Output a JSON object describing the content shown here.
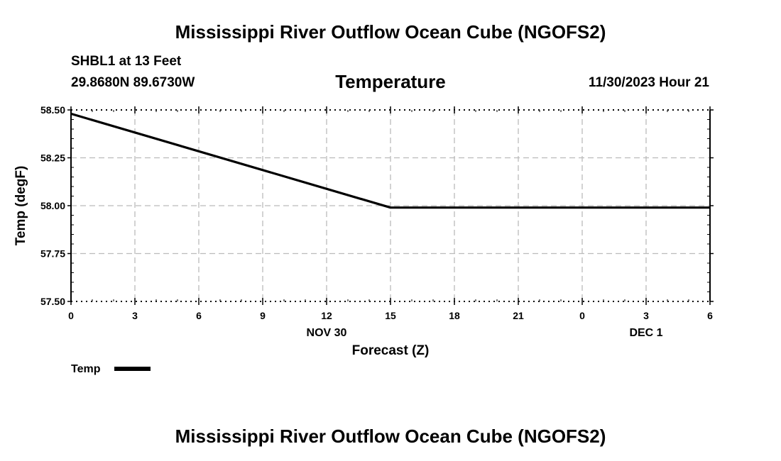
{
  "header": {
    "main_title": "Mississippi River Outflow Ocean Cube (NGOFS2)",
    "station": "SHBL1 at 13 Feet",
    "coords": "29.8680N  89.6730W",
    "variable": "Temperature",
    "datetime": "11/30/2023 Hour 21"
  },
  "chart_data": {
    "type": "line",
    "title": "Temperature",
    "xlabel": "Forecast (Z)",
    "ylabel": "Temp (degF)",
    "x_ticks": [
      "0",
      "3",
      "6",
      "9",
      "12",
      "15",
      "18",
      "21",
      "0",
      "3",
      "6"
    ],
    "x_range": [
      0,
      30
    ],
    "date_labels": [
      {
        "text": "NOV 30",
        "at": 12
      },
      {
        "text": "DEC 1",
        "at": 27
      }
    ],
    "y_ticks": [
      "58.50",
      "58.25",
      "58.00",
      "57.75",
      "57.50"
    ],
    "ylim": [
      57.5,
      58.5
    ],
    "grid": true,
    "legend_position": "bottom-left",
    "series": [
      {
        "name": "Temp",
        "color": "#000000",
        "x": [
          0,
          15,
          30
        ],
        "values": [
          58.48,
          57.99,
          57.99
        ]
      }
    ]
  },
  "footer": {
    "title": "Mississippi River Outflow Ocean Cube (NGOFS2)"
  }
}
